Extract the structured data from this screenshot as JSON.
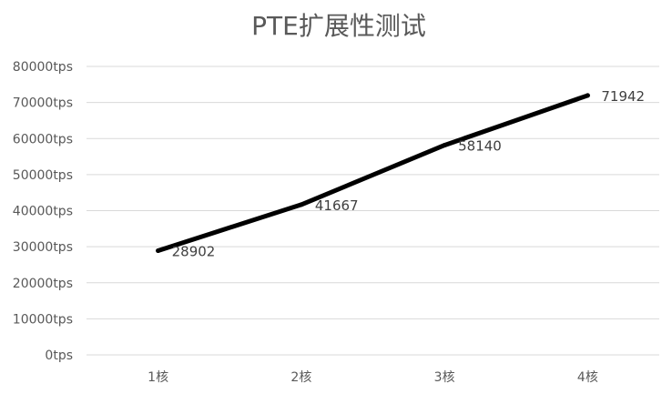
{
  "chart_data": {
    "type": "line",
    "title": "PTE扩展性测试",
    "categories": [
      "1核",
      "2核",
      "3核",
      "4核"
    ],
    "series": [
      {
        "values": [
          28902,
          41667,
          58140,
          71942
        ]
      }
    ],
    "data_labels": [
      "28902",
      "41667",
      "58140",
      "71942"
    ],
    "y_ticks": [
      0,
      10000,
      20000,
      30000,
      40000,
      50000,
      60000,
      70000,
      80000
    ],
    "y_tick_labels": [
      "0tps",
      "10000tps",
      "20000tps",
      "30000tps",
      "40000tps",
      "50000tps",
      "60000tps",
      "70000tps",
      "80000tps"
    ],
    "ylim": [
      0,
      80000
    ],
    "xlabel": "",
    "ylabel": "",
    "grid": true,
    "legend": "none",
    "line_color": "#000000",
    "grid_color": "#d9d9d9",
    "text_color": "#595959"
  }
}
